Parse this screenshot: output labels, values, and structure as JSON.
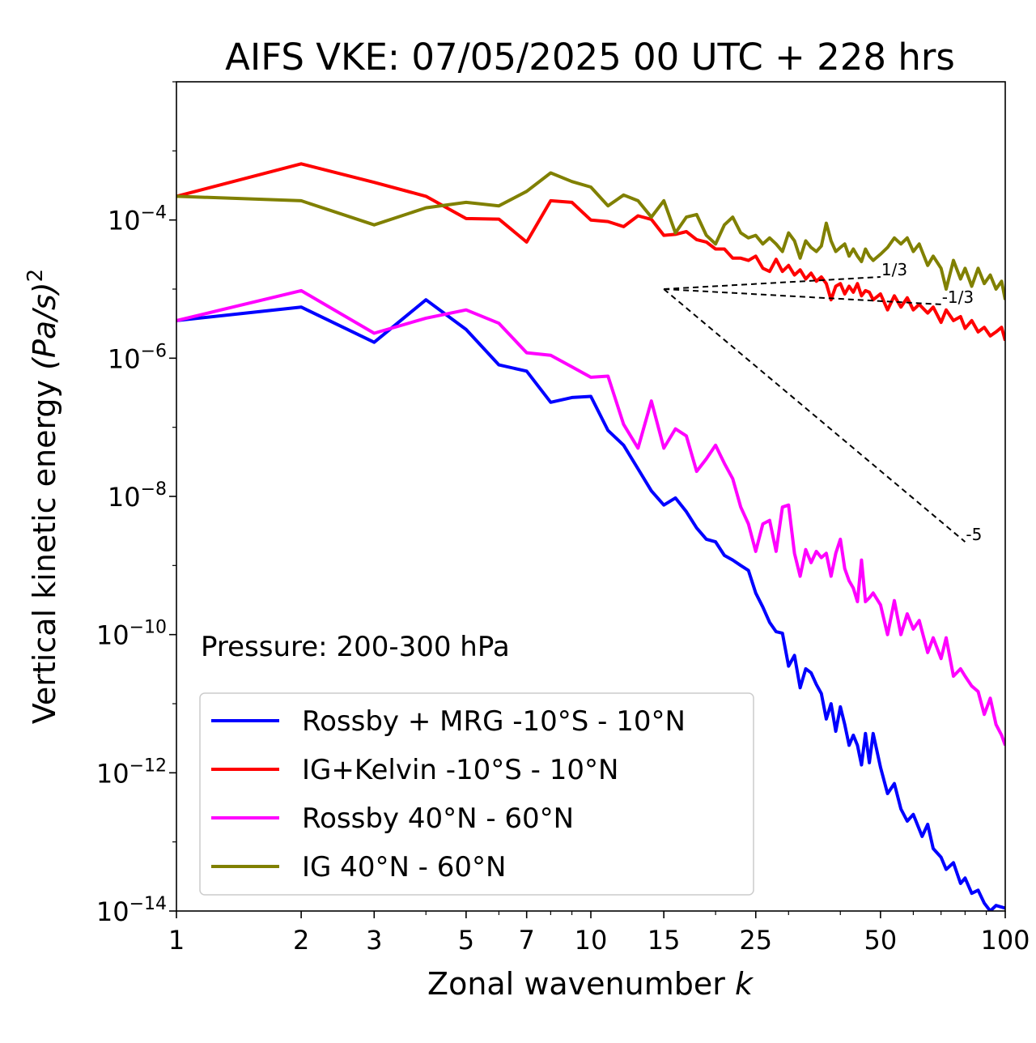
{
  "chart_data": {
    "type": "line",
    "title": "AIFS VKE: 07/05/2025 00 UTC + 228 hrs",
    "xlabel": "Zonal wavenumber",
    "xlabel_var": "k",
    "ylabel": "Vertical kinetic energy",
    "ylabel_unit": "(Pa/s)",
    "ylabel_power": "2",
    "xscale": "log",
    "yscale": "log",
    "xlim": [
      1,
      100
    ],
    "ylim": [
      1e-14,
      0.01
    ],
    "xticks": [
      1,
      2,
      3,
      5,
      7,
      10,
      15,
      25,
      50,
      100
    ],
    "xtick_labels": [
      "1",
      "2",
      "3",
      "5",
      "7",
      "10",
      "15",
      "25",
      "50",
      "100"
    ],
    "yticks": [
      {
        "value": 0.0001,
        "base": "10",
        "exp": "−4"
      },
      {
        "value": 1e-06,
        "base": "10",
        "exp": "−6"
      },
      {
        "value": 1e-08,
        "base": "10",
        "exp": "−8"
      },
      {
        "value": 1e-10,
        "base": "10",
        "exp": "−10"
      },
      {
        "value": 1e-12,
        "base": "10",
        "exp": "−12"
      },
      {
        "value": 1e-14,
        "base": "10",
        "exp": "−14"
      }
    ],
    "annotation": "Pressure: 200-300 hPa",
    "legend_position": "lower-left",
    "grid": false,
    "series": [
      {
        "name": "Rossby + MRG -10°S - 10°N",
        "color": "#0000ff",
        "points": [
          [
            1,
            3.5e-06
          ],
          [
            2,
            5.5e-06
          ],
          [
            3,
            1.7e-06
          ],
          [
            4,
            7e-06
          ],
          [
            5,
            2.6e-06
          ],
          [
            6,
            8e-07
          ],
          [
            7,
            6.5e-07
          ],
          [
            8,
            2.3e-07
          ],
          [
            9,
            2.7e-07
          ],
          [
            10,
            2.8e-07
          ],
          [
            11,
            9e-08
          ],
          [
            12,
            5.5e-08
          ],
          [
            13,
            2.5e-08
          ],
          [
            14,
            1.2e-08
          ],
          [
            15,
            7.5e-09
          ],
          [
            16,
            9.5e-09
          ],
          [
            17,
            6e-09
          ],
          [
            18,
            3.5e-09
          ],
          [
            19,
            2.4e-09
          ],
          [
            20,
            2.2e-09
          ],
          [
            21,
            1.4e-09
          ],
          [
            22,
            1.2e-09
          ],
          [
            23,
            1e-09
          ],
          [
            24,
            8.5e-10
          ],
          [
            25,
            4e-10
          ],
          [
            26,
            2.5e-10
          ],
          [
            27,
            1.5e-10
          ],
          [
            28,
            1.1e-10
          ],
          [
            29,
            1.05e-10
          ],
          [
            30,
            3.5e-11
          ],
          [
            31,
            5e-11
          ],
          [
            32,
            1.7e-11
          ],
          [
            33,
            3.2e-11
          ],
          [
            34,
            2.8e-11
          ],
          [
            35,
            1.9e-11
          ],
          [
            36,
            1.4e-11
          ],
          [
            37,
            6e-12
          ],
          [
            38,
            1e-11
          ],
          [
            39,
            4e-12
          ],
          [
            40,
            9e-12
          ],
          [
            41,
            5e-12
          ],
          [
            42,
            2.5e-12
          ],
          [
            43,
            3.5e-12
          ],
          [
            44,
            2.5e-12
          ],
          [
            45,
            1.3e-12
          ],
          [
            46,
            3.7e-12
          ],
          [
            47,
            1.4e-12
          ],
          [
            48,
            3.7e-12
          ],
          [
            50,
            1.2e-12
          ],
          [
            52,
            5e-13
          ],
          [
            54,
            7e-13
          ],
          [
            56,
            3e-13
          ],
          [
            58,
            2e-13
          ],
          [
            60,
            2.5e-13
          ],
          [
            63,
            1.2e-13
          ],
          [
            65,
            1.8e-13
          ],
          [
            67,
            8e-14
          ],
          [
            70,
            6e-14
          ],
          [
            72,
            4e-14
          ],
          [
            75,
            5e-14
          ],
          [
            78,
            2.5e-14
          ],
          [
            80,
            3e-14
          ],
          [
            83,
            1.8e-14
          ],
          [
            86,
            2e-14
          ],
          [
            89,
            1.3e-14
          ],
          [
            92,
            1e-14
          ],
          [
            95,
            1.2e-14
          ],
          [
            100,
            1.1e-14
          ]
        ]
      },
      {
        "name": "IG+Kelvin -10°S - 10°N",
        "color": "#ff0000",
        "points": [
          [
            1,
            0.00022
          ],
          [
            2,
            0.00065
          ],
          [
            3,
            0.00035
          ],
          [
            4,
            0.00022
          ],
          [
            5,
            0.000105
          ],
          [
            6,
            0.000103
          ],
          [
            7,
            4.8e-05
          ],
          [
            8,
            0.00019
          ],
          [
            9,
            0.00018
          ],
          [
            10,
            0.0001
          ],
          [
            11,
            9.5e-05
          ],
          [
            12,
            8e-05
          ],
          [
            13,
            0.000115
          ],
          [
            14,
            0.000102
          ],
          [
            15,
            6e-05
          ],
          [
            16,
            6.2e-05
          ],
          [
            17,
            6.8e-05
          ],
          [
            18,
            5.2e-05
          ],
          [
            19,
            4.8e-05
          ],
          [
            20,
            3.8e-05
          ],
          [
            21,
            3.8e-05
          ],
          [
            22,
            2.8e-05
          ],
          [
            23,
            2.8e-05
          ],
          [
            24,
            2.6e-05
          ],
          [
            25,
            3e-05
          ],
          [
            26,
            2e-05
          ],
          [
            27,
            1.8e-05
          ],
          [
            28,
            2.7e-05
          ],
          [
            29,
            1.8e-05
          ],
          [
            30,
            2.2e-05
          ],
          [
            31,
            1.6e-05
          ],
          [
            32,
            1.9e-05
          ],
          [
            33,
            1.4e-05
          ],
          [
            34,
            1.7e-05
          ],
          [
            35,
            1.3e-05
          ],
          [
            36,
            1.5e-05
          ],
          [
            37,
            1.2e-05
          ],
          [
            38,
            7e-06
          ],
          [
            39,
            1.1e-05
          ],
          [
            40,
            1.2e-05
          ],
          [
            41,
            8.5e-06
          ],
          [
            42,
            1.1e-05
          ],
          [
            43,
            9e-06
          ],
          [
            44,
            1.2e-05
          ],
          [
            45,
            8e-06
          ],
          [
            46,
            9.5e-06
          ],
          [
            47,
            9e-06
          ],
          [
            48,
            7e-06
          ],
          [
            50,
            8.5e-06
          ],
          [
            52,
            5e-06
          ],
          [
            54,
            8e-06
          ],
          [
            56,
            5.5e-06
          ],
          [
            58,
            7.5e-06
          ],
          [
            60,
            5e-06
          ],
          [
            62,
            6e-06
          ],
          [
            65,
            4.5e-06
          ],
          [
            67,
            5.5e-06
          ],
          [
            70,
            3.3e-06
          ],
          [
            72,
            5e-06
          ],
          [
            75,
            3.5e-06
          ],
          [
            78,
            4e-06
          ],
          [
            80,
            2.7e-06
          ],
          [
            83,
            3.5e-06
          ],
          [
            86,
            2.4e-06
          ],
          [
            89,
            2.8e-06
          ],
          [
            92,
            2.1e-06
          ],
          [
            95,
            2.4e-06
          ],
          [
            98,
            2.8e-06
          ],
          [
            100,
            1.8e-06
          ]
        ]
      },
      {
        "name": "Rossby 40°N - 60°N",
        "color": "#ff00ff",
        "points": [
          [
            1,
            3.5e-06
          ],
          [
            2,
            9.5e-06
          ],
          [
            3,
            2.3e-06
          ],
          [
            4,
            3.8e-06
          ],
          [
            5,
            5e-06
          ],
          [
            6,
            3.2e-06
          ],
          [
            7,
            1.2e-06
          ],
          [
            8,
            1.1e-06
          ],
          [
            9,
            7.5e-07
          ],
          [
            10,
            5.3e-07
          ],
          [
            11,
            5.5e-07
          ],
          [
            12,
            1.1e-07
          ],
          [
            13,
            5e-08
          ],
          [
            14,
            2.4e-07
          ],
          [
            15,
            5e-08
          ],
          [
            16,
            9.5e-08
          ],
          [
            17,
            7.5e-08
          ],
          [
            18,
            2.3e-08
          ],
          [
            19,
            3.5e-08
          ],
          [
            20,
            5.5e-08
          ],
          [
            21,
            3e-08
          ],
          [
            22,
            1.8e-08
          ],
          [
            23,
            7e-09
          ],
          [
            24,
            4e-09
          ],
          [
            25,
            1.6e-09
          ],
          [
            26,
            4e-09
          ],
          [
            27,
            4.5e-09
          ],
          [
            28,
            1.6e-09
          ],
          [
            29,
            7e-09
          ],
          [
            30,
            7.5e-09
          ],
          [
            31,
            1.5e-09
          ],
          [
            32,
            7e-10
          ],
          [
            33,
            1.7e-09
          ],
          [
            34,
            1.1e-09
          ],
          [
            35,
            1.6e-09
          ],
          [
            36,
            1.3e-09
          ],
          [
            37,
            1.5e-09
          ],
          [
            38,
            7e-10
          ],
          [
            39,
            1.5e-09
          ],
          [
            40,
            2.4e-09
          ],
          [
            41,
            9e-10
          ],
          [
            42,
            6e-10
          ],
          [
            43,
            4.7e-10
          ],
          [
            44,
            3e-10
          ],
          [
            45,
            1.2e-09
          ],
          [
            46,
            3e-10
          ],
          [
            47,
            3.4e-10
          ],
          [
            48,
            4e-10
          ],
          [
            50,
            2.7e-10
          ],
          [
            52,
            1e-10
          ],
          [
            54,
            3.1e-10
          ],
          [
            56,
            1e-10
          ],
          [
            58,
            2e-10
          ],
          [
            60,
            1.2e-10
          ],
          [
            62,
            1.6e-10
          ],
          [
            65,
            5.5e-11
          ],
          [
            67,
            9e-11
          ],
          [
            70,
            4.5e-11
          ],
          [
            72,
            9e-11
          ],
          [
            75,
            2.5e-11
          ],
          [
            78,
            3.2e-11
          ],
          [
            80,
            2.5e-11
          ],
          [
            83,
            1.8e-11
          ],
          [
            86,
            1.5e-11
          ],
          [
            89,
            7e-12
          ],
          [
            92,
            1.2e-11
          ],
          [
            95,
            5e-12
          ],
          [
            98,
            3.5e-12
          ],
          [
            100,
            2.5e-12
          ]
        ]
      },
      {
        "name": "IG 40°N - 60°N",
        "color": "#808000",
        "points": [
          [
            1,
            0.00022
          ],
          [
            2,
            0.00019
          ],
          [
            3,
            8.5e-05
          ],
          [
            4,
            0.00015
          ],
          [
            5,
            0.00018
          ],
          [
            6,
            0.00016
          ],
          [
            7,
            0.00026
          ],
          [
            8,
            0.00048
          ],
          [
            9,
            0.00036
          ],
          [
            10,
            0.0003
          ],
          [
            11,
            0.00016
          ],
          [
            12,
            0.00023
          ],
          [
            13,
            0.00019
          ],
          [
            14,
            0.00011
          ],
          [
            15,
            0.00019
          ],
          [
            16,
            6.5e-05
          ],
          [
            17,
            0.00011
          ],
          [
            18,
            0.00012
          ],
          [
            19,
            6e-05
          ],
          [
            20,
            4.5e-05
          ],
          [
            21,
            8.5e-05
          ],
          [
            22,
            0.00011
          ],
          [
            23,
            6.5e-05
          ],
          [
            24,
            5.5e-05
          ],
          [
            25,
            6e-05
          ],
          [
            26,
            4.5e-05
          ],
          [
            27,
            5.5e-05
          ],
          [
            28,
            4.5e-05
          ],
          [
            29,
            3.5e-05
          ],
          [
            30,
            6.5e-05
          ],
          [
            31,
            5e-05
          ],
          [
            32,
            2.8e-05
          ],
          [
            33,
            5e-05
          ],
          [
            34,
            4e-05
          ],
          [
            35,
            3.5e-05
          ],
          [
            36,
            4.2e-05
          ],
          [
            37,
            9e-05
          ],
          [
            38,
            5e-05
          ],
          [
            39,
            3.5e-05
          ],
          [
            40,
            4e-05
          ],
          [
            41,
            4.5e-05
          ],
          [
            42,
            3e-05
          ],
          [
            43,
            3.8e-05
          ],
          [
            44,
            3e-05
          ],
          [
            45,
            2.5e-05
          ],
          [
            46,
            3.8e-05
          ],
          [
            47,
            3e-05
          ],
          [
            48,
            2.6e-05
          ],
          [
            50,
            3.2e-05
          ],
          [
            52,
            4e-05
          ],
          [
            54,
            5.5e-05
          ],
          [
            56,
            4.5e-05
          ],
          [
            58,
            5.5e-05
          ],
          [
            60,
            3.5e-05
          ],
          [
            62,
            4.5e-05
          ],
          [
            65,
            2.2e-05
          ],
          [
            67,
            3e-05
          ],
          [
            70,
            2e-05
          ],
          [
            72,
            1e-05
          ],
          [
            75,
            2.6e-05
          ],
          [
            78,
            1.4e-05
          ],
          [
            80,
            2e-05
          ],
          [
            83,
            1.1e-05
          ],
          [
            86,
            2e-05
          ],
          [
            89,
            1.2e-05
          ],
          [
            92,
            1.6e-05
          ],
          [
            95,
            1e-05
          ],
          [
            98,
            1.3e-05
          ],
          [
            100,
            7e-06
          ]
        ]
      }
    ],
    "reference_lines": [
      {
        "label": "1/3",
        "from": [
          15,
          1e-05
        ],
        "to": [
          50,
          1.5e-05
        ]
      },
      {
        "label": "-1/3",
        "from": [
          15,
          1e-05
        ],
        "to": [
          70,
          6e-06
        ]
      },
      {
        "label": "-5",
        "from": [
          15,
          1e-05
        ],
        "to": [
          80,
          2.2e-09
        ]
      }
    ]
  }
}
